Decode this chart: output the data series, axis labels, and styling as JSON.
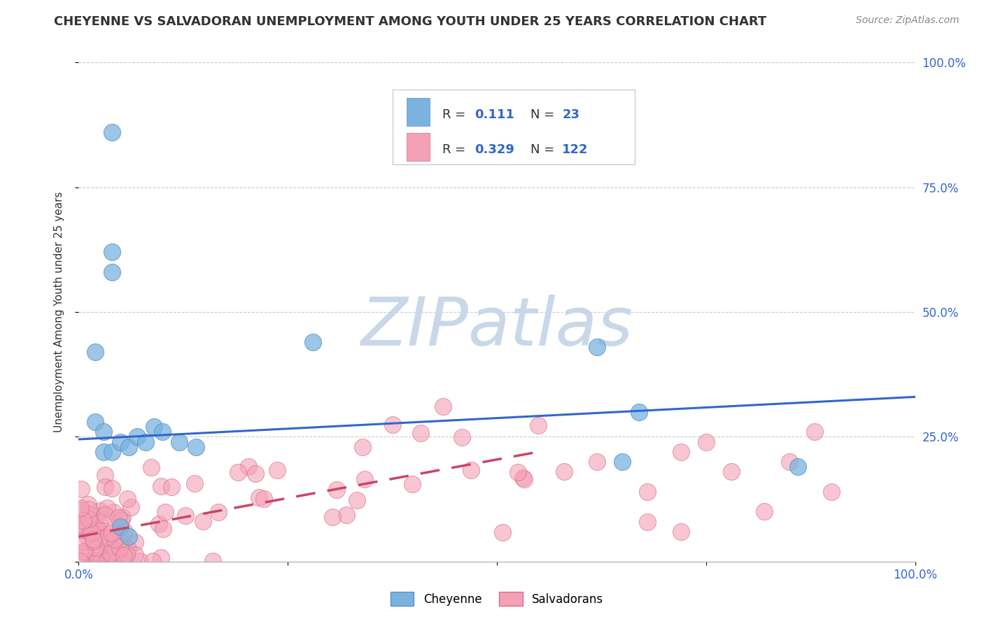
{
  "title": "CHEYENNE VS SALVADORAN UNEMPLOYMENT AMONG YOUTH UNDER 25 YEARS CORRELATION CHART",
  "source": "Source: ZipAtlas.com",
  "ylabel": "Unemployment Among Youth under 25 years",
  "xlim": [
    0.0,
    1.0
  ],
  "ylim": [
    0.0,
    1.0
  ],
  "background_color": "#ffffff",
  "grid_color": "#cccccc",
  "cheyenne_color": "#7ab3e0",
  "cheyenne_edge_color": "#5a93c0",
  "salvadoran_color": "#f4a0b5",
  "salvadoran_edge_color": "#d47090",
  "cheyenne_line_color": "#3366cc",
  "salvadoran_line_color": "#cc4466",
  "R_cheyenne": 0.111,
  "N_cheyenne": 23,
  "R_salvadoran": 0.329,
  "N_salvadoran": 122,
  "cheyenne_line_x0": 0.0,
  "cheyenne_line_y0": 0.245,
  "cheyenne_line_x1": 1.0,
  "cheyenne_line_y1": 0.33,
  "salvadoran_line_x0": 0.0,
  "salvadoran_line_y0": 0.05,
  "salvadoran_line_x1": 0.55,
  "salvadoran_line_y1": 0.22,
  "watermark_text": "ZIPatlas",
  "watermark_color": "#c8d8e8",
  "legend_box_color": "#cccccc",
  "text_color_dark": "#333333",
  "text_color_blue": "#3366cc",
  "title_fontsize": 13,
  "source_fontsize": 10,
  "tick_fontsize": 12,
  "legend_fontsize": 13,
  "cheyenne_scatter_seed": 77,
  "salvadoran_scatter_seed": 88
}
